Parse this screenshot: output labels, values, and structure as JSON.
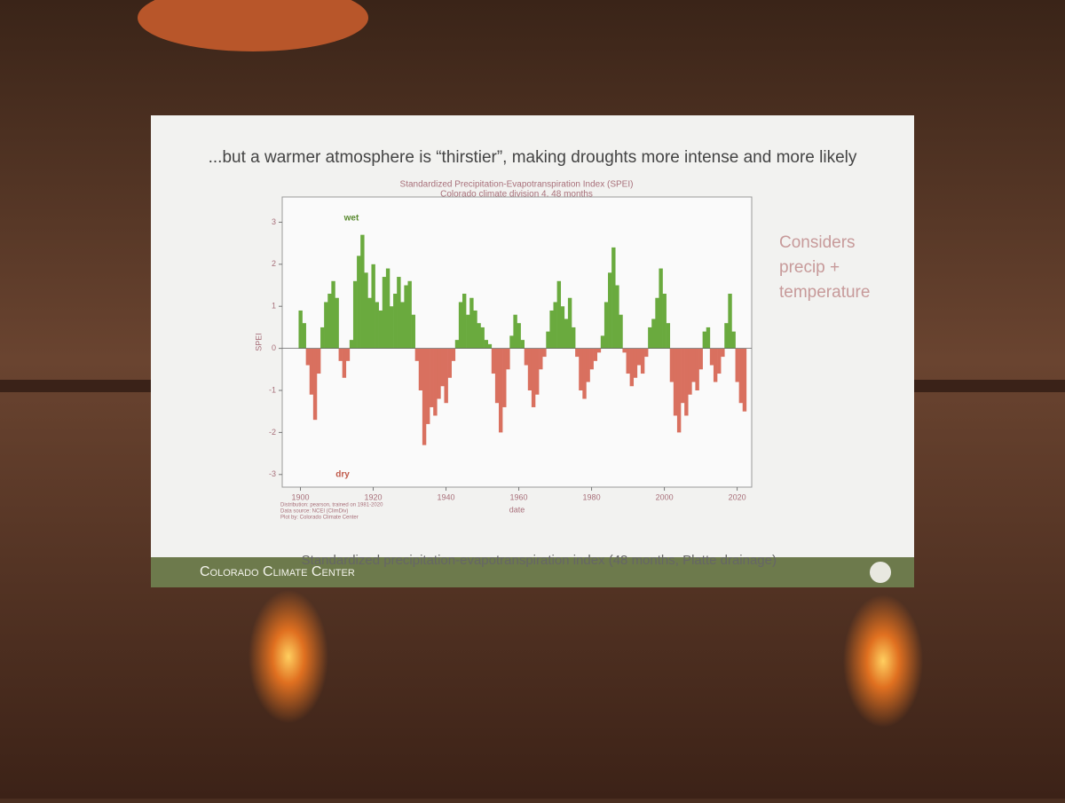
{
  "slide": {
    "headline": "...but a warmer atmosphere is “thirstier”, making droughts more intense and more likely",
    "side_note": [
      "Considers",
      "precip +",
      "temperature"
    ],
    "caption": "Standardized precipitation-evapotranspiration index (48 months, Platte drainage)",
    "footer": "Colorado Climate Center"
  },
  "chart_data": {
    "type": "bar",
    "title": "Standardized Precipitation-Evapotranspiration Index (SPEI)",
    "subtitle": "Colorado climate division 4, 48 months",
    "x_label": "date",
    "y_label": "SPEI",
    "annotations": {
      "wet": "wet",
      "dry": "dry"
    },
    "notes": [
      "Distribution: pearson, trained on 1981-2020",
      "Data source: NCEI (ClimDiv)",
      "Plot by: Colorado Climate Center"
    ],
    "positive_color": "#6aaa3e",
    "negative_color": "#d9705f",
    "xlim": [
      1895,
      2024
    ],
    "ylim": [
      -3.3,
      3.6
    ],
    "xticks": [
      1900,
      1920,
      1940,
      1960,
      1980,
      2000,
      2020
    ],
    "yticks": [
      -3,
      -2,
      -1,
      0,
      1,
      2,
      3
    ],
    "x": [
      1900,
      1901,
      1902,
      1903,
      1904,
      1905,
      1906,
      1907,
      1908,
      1909,
      1910,
      1911,
      1912,
      1913,
      1914,
      1915,
      1916,
      1917,
      1918,
      1919,
      1920,
      1921,
      1922,
      1923,
      1924,
      1925,
      1926,
      1927,
      1928,
      1929,
      1930,
      1931,
      1932,
      1933,
      1934,
      1935,
      1936,
      1937,
      1938,
      1939,
      1940,
      1941,
      1942,
      1943,
      1944,
      1945,
      1946,
      1947,
      1948,
      1949,
      1950,
      1951,
      1952,
      1953,
      1954,
      1955,
      1956,
      1957,
      1958,
      1959,
      1960,
      1961,
      1962,
      1963,
      1964,
      1965,
      1966,
      1967,
      1968,
      1969,
      1970,
      1971,
      1972,
      1973,
      1974,
      1975,
      1976,
      1977,
      1978,
      1979,
      1980,
      1981,
      1982,
      1983,
      1984,
      1985,
      1986,
      1987,
      1988,
      1989,
      1990,
      1991,
      1992,
      1993,
      1994,
      1995,
      1996,
      1997,
      1998,
      1999,
      2000,
      2001,
      2002,
      2003,
      2004,
      2005,
      2006,
      2007,
      2008,
      2009,
      2010,
      2011,
      2012,
      2013,
      2014,
      2015,
      2016,
      2017,
      2018,
      2019,
      2020,
      2021,
      2022
    ],
    "values": [
      0.9,
      0.6,
      -0.4,
      -1.1,
      -1.7,
      -0.6,
      0.5,
      1.1,
      1.3,
      1.6,
      1.2,
      -0.3,
      -0.7,
      -0.3,
      0.2,
      1.6,
      2.2,
      2.7,
      1.8,
      1.2,
      2.0,
      1.1,
      0.9,
      1.7,
      1.9,
      1.0,
      1.3,
      1.7,
      1.1,
      1.5,
      1.6,
      0.8,
      -0.3,
      -1.0,
      -2.3,
      -1.8,
      -1.4,
      -1.6,
      -1.2,
      -0.9,
      -1.3,
      -0.7,
      -0.3,
      0.2,
      1.1,
      1.3,
      0.8,
      1.2,
      0.9,
      0.6,
      0.5,
      0.2,
      0.1,
      -0.6,
      -1.3,
      -2.0,
      -1.4,
      -0.5,
      0.3,
      0.8,
      0.6,
      0.2,
      -0.4,
      -1.0,
      -1.4,
      -1.1,
      -0.5,
      -0.2,
      0.4,
      0.9,
      1.1,
      1.6,
      1.0,
      0.7,
      1.2,
      0.5,
      -0.2,
      -1.0,
      -1.2,
      -0.8,
      -0.5,
      -0.3,
      -0.1,
      0.3,
      1.1,
      1.8,
      2.4,
      1.5,
      0.8,
      -0.1,
      -0.6,
      -0.9,
      -0.7,
      -0.4,
      -0.6,
      -0.2,
      0.5,
      0.7,
      1.2,
      1.9,
      1.3,
      0.6,
      -0.8,
      -1.6,
      -2.0,
      -1.3,
      -1.6,
      -1.1,
      -0.8,
      -1.0,
      -0.5,
      0.4,
      0.5,
      -0.4,
      -0.8,
      -0.6,
      -0.2,
      0.6,
      1.3,
      0.4,
      -0.8,
      -1.3,
      -1.5
    ]
  }
}
